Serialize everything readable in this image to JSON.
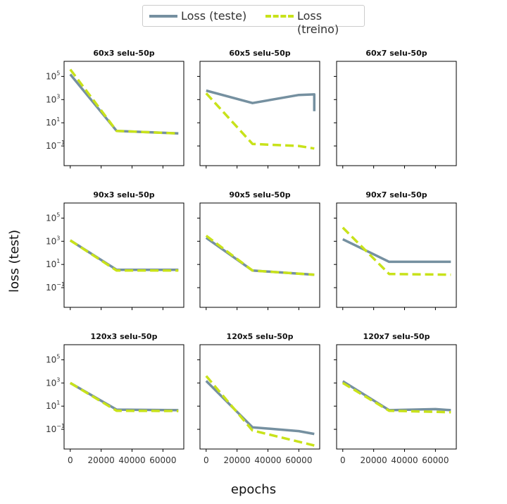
{
  "legend": {
    "test_label": "Loss (teste)",
    "train_label": "Loss (treino)"
  },
  "axes": {
    "ylabel": "loss (test)",
    "xlabel": "epochs"
  },
  "colors": {
    "test": "#7590a0",
    "train": "#c8e21a",
    "axis": "#000000",
    "tick_text": "#333333"
  },
  "chart_data": {
    "type": "line",
    "grid": false,
    "legend_position": "top-center",
    "yscale": "log",
    "xlim": [
      -4000,
      73500
    ],
    "ylim": [
      0.002,
      2000000
    ],
    "x_ticks": [
      0,
      20000,
      40000,
      60000
    ],
    "x_tick_labels": [
      "0",
      "20000",
      "40000",
      "60000"
    ],
    "y_ticks": [
      {
        "value": 0.1,
        "base": "10",
        "exp": "−1"
      },
      {
        "value": 10,
        "base": "10",
        "exp": "1"
      },
      {
        "value": 1000,
        "base": "10",
        "exp": "3"
      },
      {
        "value": 100000,
        "base": "10",
        "exp": "5"
      }
    ],
    "subplots": [
      {
        "title": "60x3 selu-50p",
        "test": {
          "x": [
            0,
            30000,
            70000
          ],
          "y": [
            150000,
            2,
            1.2
          ]
        },
        "train": {
          "x": [
            0,
            30000,
            70000
          ],
          "y": [
            400000,
            2,
            1.2
          ]
        }
      },
      {
        "title": "60x5 selu-50p",
        "test": {
          "x": [
            0,
            30000,
            60000,
            70000,
            70000
          ],
          "y": [
            6000,
            500,
            2500,
            2800,
            100
          ]
        },
        "train": {
          "x": [
            0,
            30000,
            60000,
            70000
          ],
          "y": [
            3500,
            0.15,
            0.1,
            0.06
          ]
        }
      },
      {
        "title": "60x7 selu-50p",
        "test": {
          "x": [],
          "y": []
        },
        "train": {
          "x": [],
          "y": []
        }
      },
      {
        "title": "90x3 selu-50p",
        "test": {
          "x": [
            0,
            30000,
            70000
          ],
          "y": [
            1200,
            3.5,
            3.5
          ]
        },
        "train": {
          "x": [
            0,
            30000,
            70000
          ],
          "y": [
            1200,
            3,
            3
          ]
        }
      },
      {
        "title": "90x5 selu-50p",
        "test": {
          "x": [
            0,
            30000,
            70000
          ],
          "y": [
            2000,
            3,
            1.3
          ]
        },
        "train": {
          "x": [
            0,
            30000,
            70000
          ],
          "y": [
            3000,
            3,
            1.3
          ]
        }
      },
      {
        "title": "90x7 selu-50p",
        "test": {
          "x": [
            0,
            30000,
            70000
          ],
          "y": [
            1500,
            17,
            17
          ]
        },
        "train": {
          "x": [
            0,
            30000,
            70000
          ],
          "y": [
            15000,
            1.5,
            1.3
          ]
        }
      },
      {
        "title": "120x3 selu-50p",
        "test": {
          "x": [
            0,
            30000,
            70000
          ],
          "y": [
            1000,
            5,
            4.5
          ]
        },
        "train": {
          "x": [
            0,
            30000,
            70000
          ],
          "y": [
            1000,
            4,
            3.8
          ]
        }
      },
      {
        "title": "120x5 selu-50p",
        "test": {
          "x": [
            0,
            30000,
            60000,
            70000
          ],
          "y": [
            1500,
            0.15,
            0.07,
            0.04
          ]
        },
        "train": {
          "x": [
            0,
            30000,
            70000
          ],
          "y": [
            4000,
            0.08,
            0.004
          ]
        }
      },
      {
        "title": "120x7 selu-50p",
        "test": {
          "x": [
            0,
            30000,
            60000,
            70000
          ],
          "y": [
            1400,
            4.5,
            5.5,
            4.5
          ]
        },
        "train": {
          "x": [
            0,
            30000,
            70000
          ],
          "y": [
            1000,
            4,
            3
          ]
        }
      }
    ]
  }
}
